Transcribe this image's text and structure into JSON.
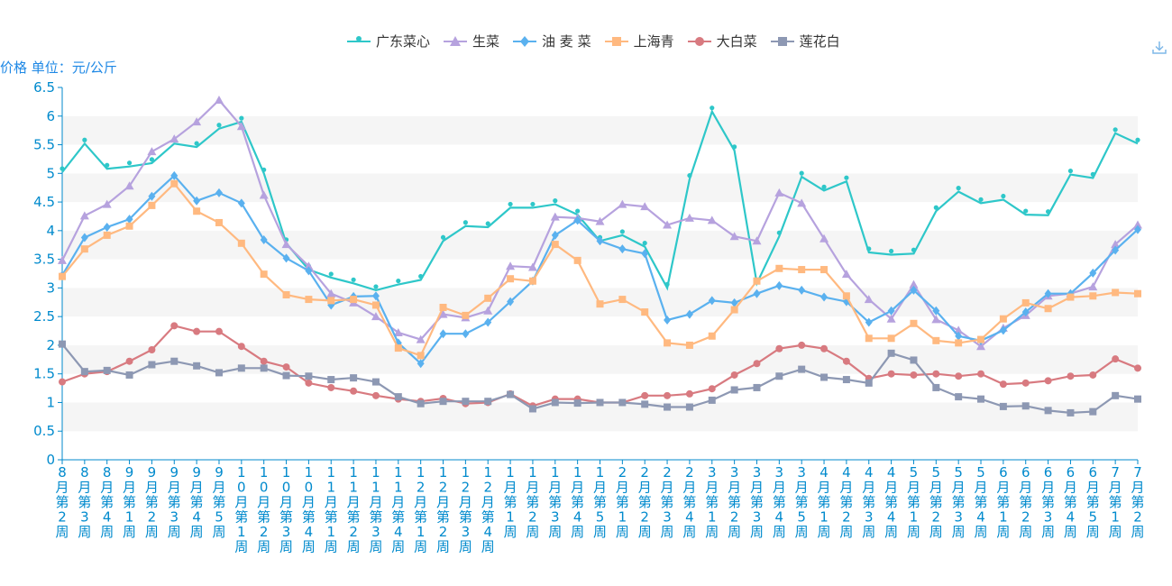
{
  "chart_data": {
    "type": "line",
    "ylabel": "价格 单位：元/公斤",
    "ylim": [
      0,
      6.5
    ],
    "yticks": [
      "0",
      "0.5",
      "1",
      "1.5",
      "2",
      "2.5",
      "3",
      "3.5",
      "4",
      "4.5",
      "5",
      "5.5",
      "6",
      "6.5"
    ],
    "grid": "horizontal bands",
    "legend_position": "top-center",
    "categories": [
      "8月第2周",
      "8月第3周",
      "8月第4周",
      "9月第1周",
      "9月第2周",
      "9月第3周",
      "9月第4周",
      "9月第5周",
      "10月第1周",
      "10月第2周",
      "10月第3周",
      "10月第4周",
      "11月第1周",
      "11月第2周",
      "11月第3周",
      "11月第4周",
      "12月第1周",
      "12月第2周",
      "12月第3周",
      "12月第4周",
      "1月第1周",
      "1月第2周",
      "1月第3周",
      "1月第4周",
      "1月第5周",
      "2月第1周",
      "2月第2周",
      "2月第3周",
      "2月第4周",
      "3月第1周",
      "3月第2周",
      "3月第3周",
      "3月第4周",
      "3月第5周",
      "4月第1周",
      "4月第2周",
      "4月第3周",
      "4月第4周",
      "5月第1周",
      "5月第2周",
      "5月第3周",
      "5月第4周",
      "6月第1周",
      "6月第2周",
      "6月第3周",
      "6月第4周",
      "6月第5周",
      "7月第1周",
      "7月第2周"
    ],
    "series": [
      {
        "name": "广东菜心",
        "color": "#2ec7c9",
        "marker": "pin",
        "values": [
          5.02,
          5.52,
          5.08,
          5.12,
          5.18,
          5.52,
          5.46,
          5.78,
          5.9,
          5.0,
          3.78,
          3.32,
          3.18,
          3.08,
          2.96,
          3.06,
          3.14,
          3.82,
          4.08,
          4.06,
          4.4,
          4.4,
          4.46,
          4.28,
          3.82,
          3.92,
          3.72,
          3.0,
          4.9,
          6.08,
          5.4,
          3.08,
          3.9,
          4.94,
          4.7,
          4.86,
          3.62,
          3.58,
          3.6,
          4.34,
          4.68,
          4.48,
          4.54,
          4.28,
          4.27,
          4.98,
          4.92,
          5.7,
          5.52
        ]
      },
      {
        "name": "生菜",
        "color": "#b6a2de",
        "marker": "triangle",
        "values": [
          3.48,
          4.26,
          4.46,
          4.78,
          5.38,
          5.6,
          5.9,
          6.28,
          5.82,
          4.62,
          3.76,
          3.38,
          2.9,
          2.74,
          2.5,
          2.22,
          2.1,
          2.54,
          2.48,
          2.6,
          3.38,
          3.36,
          4.24,
          4.22,
          4.16,
          4.46,
          4.42,
          4.1,
          4.22,
          4.18,
          3.9,
          3.82,
          4.66,
          4.48,
          3.86,
          3.24,
          2.8,
          2.46,
          3.06,
          2.45,
          2.26,
          1.98,
          2.3,
          2.52,
          2.86,
          2.9,
          3.02,
          3.76,
          4.1
        ]
      },
      {
        "name": "油 麦 菜",
        "color": "#5ab1ef",
        "marker": "diamond",
        "values": [
          3.22,
          3.88,
          4.06,
          4.2,
          4.6,
          4.96,
          4.52,
          4.66,
          4.48,
          3.84,
          3.52,
          3.3,
          2.7,
          2.85,
          2.86,
          2.04,
          1.68,
          2.2,
          2.2,
          2.4,
          2.76,
          3.12,
          3.92,
          4.18,
          3.82,
          3.68,
          3.6,
          2.44,
          2.54,
          2.78,
          2.74,
          2.9,
          3.04,
          2.96,
          2.84,
          2.76,
          2.4,
          2.6,
          2.96,
          2.6,
          2.16,
          2.08,
          2.26,
          2.58,
          2.9,
          2.9,
          3.26,
          3.66,
          4.02
        ]
      },
      {
        "name": "上海青",
        "color": "#ffb980",
        "marker": "square",
        "values": [
          3.2,
          3.68,
          3.92,
          4.08,
          4.44,
          4.82,
          4.34,
          4.14,
          3.78,
          3.24,
          2.88,
          2.8,
          2.78,
          2.8,
          2.7,
          1.95,
          1.82,
          2.66,
          2.52,
          2.82,
          3.16,
          3.12,
          3.76,
          3.48,
          2.72,
          2.8,
          2.58,
          2.04,
          2.0,
          2.16,
          2.62,
          3.12,
          3.34,
          3.32,
          3.32,
          2.86,
          2.12,
          2.12,
          2.38,
          2.08,
          2.04,
          2.1,
          2.46,
          2.74,
          2.64,
          2.84,
          2.86,
          2.92,
          2.9
        ]
      },
      {
        "name": "大白菜",
        "color": "#d87a80",
        "marker": "circle",
        "values": [
          1.36,
          1.5,
          1.54,
          1.72,
          1.92,
          2.34,
          2.24,
          2.24,
          1.98,
          1.72,
          1.62,
          1.34,
          1.26,
          1.2,
          1.12,
          1.06,
          1.02,
          1.07,
          0.98,
          1.0,
          1.15,
          0.94,
          1.06,
          1.06,
          1.0,
          1.0,
          1.12,
          1.12,
          1.15,
          1.24,
          1.48,
          1.68,
          1.94,
          2.0,
          1.94,
          1.72,
          1.42,
          1.5,
          1.48,
          1.5,
          1.46,
          1.5,
          1.32,
          1.34,
          1.38,
          1.46,
          1.48,
          1.76,
          1.6
        ]
      },
      {
        "name": "莲花白",
        "color": "#8d98b3",
        "marker": "square",
        "values": [
          2.02,
          1.54,
          1.56,
          1.48,
          1.66,
          1.72,
          1.64,
          1.52,
          1.6,
          1.6,
          1.47,
          1.46,
          1.4,
          1.43,
          1.36,
          1.1,
          0.98,
          1.02,
          1.02,
          1.02,
          1.14,
          0.89,
          1.0,
          0.99,
          1.0,
          1.0,
          0.97,
          0.92,
          0.92,
          1.04,
          1.22,
          1.26,
          1.46,
          1.58,
          1.44,
          1.4,
          1.34,
          1.86,
          1.74,
          1.26,
          1.1,
          1.06,
          0.93,
          0.94,
          0.86,
          0.82,
          0.84,
          1.12,
          1.06
        ]
      }
    ]
  },
  "icons": {
    "download": "download-icon"
  }
}
